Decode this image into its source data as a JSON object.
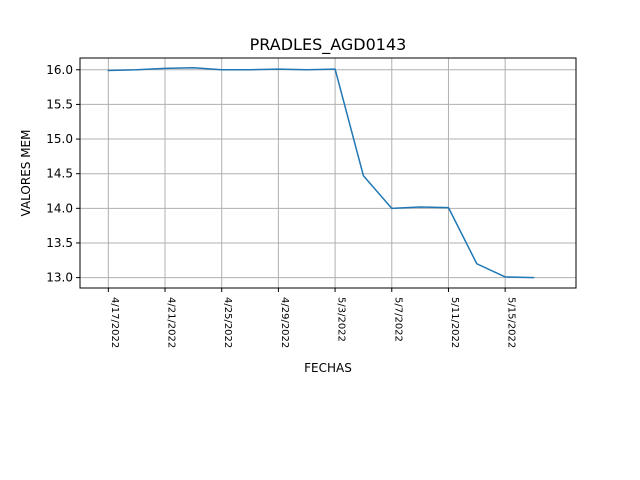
{
  "chart_data": {
    "type": "line",
    "title": "PRADLES_AGD0143",
    "xlabel": "FECHAS",
    "ylabel": "VALORES MEM",
    "grid": true,
    "x": [
      "4/17/2022",
      "4/19/2022",
      "4/21/2022",
      "4/23/2022",
      "4/25/2022",
      "4/27/2022",
      "4/29/2022",
      "5/1/2022",
      "5/3/2022",
      "5/5/2022",
      "5/7/2022",
      "5/9/2022",
      "5/11/2022",
      "5/13/2022",
      "5/15/2022",
      "5/17/2022"
    ],
    "series": [
      {
        "color": "#1f77b4",
        "values": [
          15.99,
          16.0,
          16.02,
          16.03,
          16.0,
          16.0,
          16.01,
          16.0,
          16.01,
          14.47,
          14.0,
          14.02,
          14.01,
          13.2,
          13.01,
          13.0
        ]
      }
    ],
    "xticks": [
      "4/17/2022",
      "4/21/2022",
      "4/25/2022",
      "4/29/2022",
      "5/3/2022",
      "5/7/2022",
      "5/11/2022",
      "5/15/2022"
    ],
    "yticks": [
      "13.0",
      "13.5",
      "14.0",
      "14.5",
      "15.0",
      "15.5",
      "16.0"
    ],
    "ytick_values": [
      13.0,
      13.5,
      14.0,
      14.5,
      15.0,
      15.5,
      16.0
    ],
    "xlim": [
      "4/15/2022",
      "5/20/2022"
    ],
    "ylim": [
      12.85,
      16.17
    ]
  }
}
